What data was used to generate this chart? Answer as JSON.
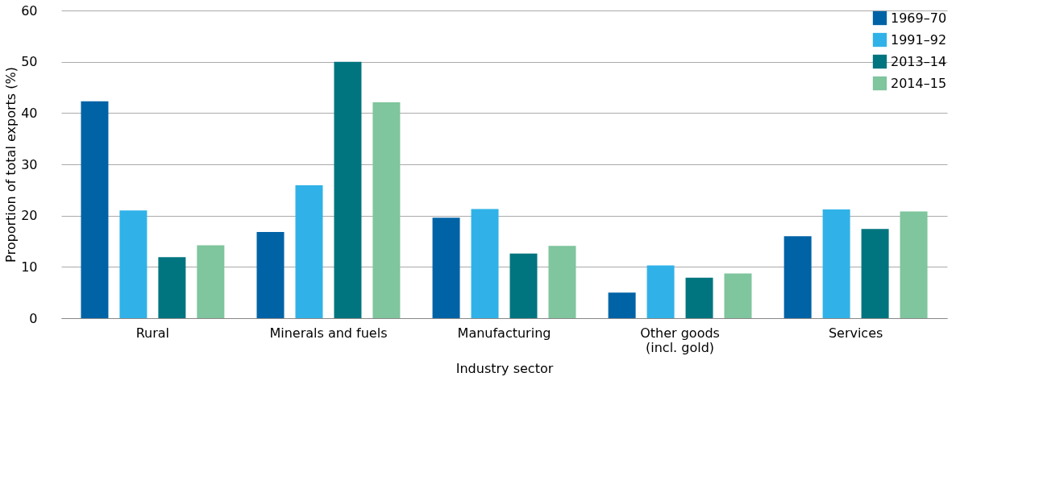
{
  "chart_data": {
    "type": "bar",
    "xlabel": "Industry sector",
    "ylabel": "Proportion of total exports (%)",
    "categories": [
      "Rural",
      "Minerals and fuels",
      "Manufacturing",
      "Other goods\n(incl. gold)",
      "Services"
    ],
    "series": [
      {
        "name": "1969–70",
        "color": "#0063a6",
        "values": [
          42.3,
          16.8,
          19.6,
          5.0,
          16.0
        ]
      },
      {
        "name": "1991–92",
        "color": "#30b2e8",
        "values": [
          21.0,
          25.9,
          21.3,
          10.3,
          21.2
        ]
      },
      {
        "name": "2013–14",
        "color": "#00757f",
        "values": [
          11.9,
          50.0,
          12.6,
          7.9,
          17.4
        ]
      },
      {
        "name": "2014–15",
        "color": "#7fc59d",
        "values": [
          14.2,
          42.1,
          14.1,
          8.7,
          20.8
        ]
      }
    ],
    "ylim": [
      0,
      60
    ],
    "yticks": [
      0,
      10,
      20,
      30,
      40,
      50,
      60
    ],
    "grid": "y",
    "legend": "top right"
  }
}
